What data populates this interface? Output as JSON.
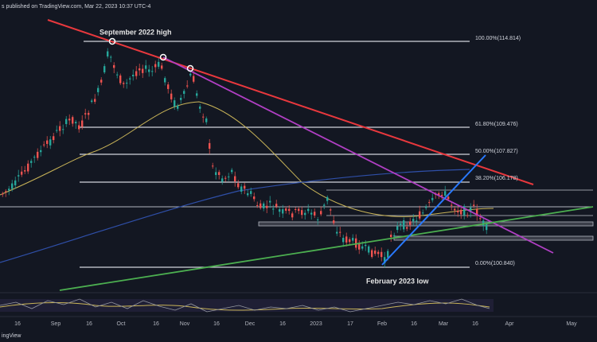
{
  "header": {
    "text": "s published on TradingView.com, Mar 22, 2023 10:37 UTC-4"
  },
  "annotations": {
    "high": "September 2022 high",
    "low": "February 2023 low"
  },
  "fib_labels": [
    "100.00%(114.814)",
    "61.80%(109.476)",
    "50.00%(107.827)",
    "38.20%(106.178)",
    "0.00%(100.840)"
  ],
  "x_axis": {
    "labels": [
      "16",
      "Sep",
      "16",
      "Oct",
      "16",
      "Nov",
      "16",
      "Dec",
      "16",
      "2023",
      "17",
      "Feb",
      "16",
      "Mar",
      "16",
      "Apr",
      "May"
    ]
  },
  "footer": {
    "logo": "ingView"
  }
}
